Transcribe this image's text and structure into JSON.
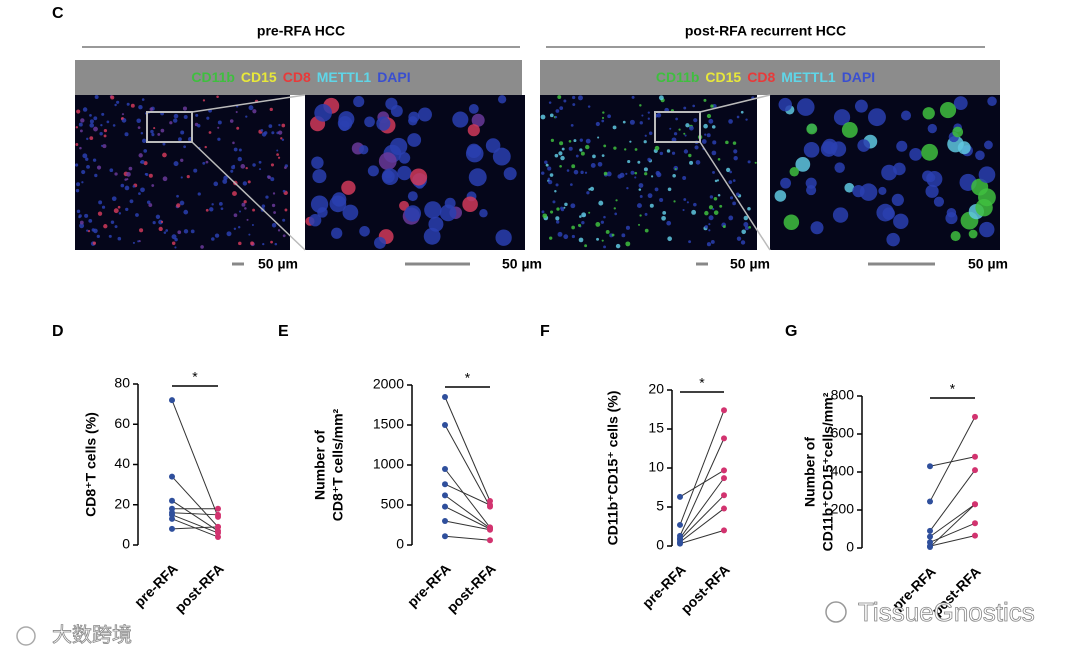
{
  "panel_c": {
    "letter": "C",
    "groups": [
      {
        "title": "pre-RFA HCC",
        "markers": [
          {
            "text": "CD11b",
            "color": "#3fbf3f"
          },
          {
            "text": "CD15",
            "color": "#e8e83a"
          },
          {
            "text": "CD8",
            "color": "#e83a3a"
          },
          {
            "text": "METTL1",
            "color": "#5fd6e8"
          },
          {
            "text": "DAPI",
            "color": "#3a4fd0"
          }
        ],
        "scale_bars": [
          "50 µm",
          "50 µm"
        ]
      },
      {
        "title": "post-RFA recurrent HCC",
        "markers": [
          {
            "text": "CD11b",
            "color": "#3fbf3f"
          },
          {
            "text": "CD15",
            "color": "#e8e83a"
          },
          {
            "text": "CD8",
            "color": "#e83a3a"
          },
          {
            "text": "METTL1",
            "color": "#5fd6e8"
          },
          {
            "text": "DAPI",
            "color": "#3a4fd0"
          }
        ],
        "scale_bars": [
          "50 µm",
          "50 µm"
        ]
      }
    ]
  },
  "chart_data": [
    {
      "type": "paired",
      "panel": "D",
      "ylabel": [
        "CD8⁺T cells (%)"
      ],
      "categories": [
        "pre-RFA",
        "post-RFA"
      ],
      "marker_colors": [
        "#2f4f9c",
        "#d2336f"
      ],
      "significance": "*",
      "series": [
        {
          "values": [
            72,
            14
          ]
        },
        {
          "values": [
            34,
            9
          ]
        },
        {
          "values": [
            22,
            7
          ]
        },
        {
          "values": [
            18,
            18
          ]
        },
        {
          "values": [
            16,
            15
          ]
        },
        {
          "values": [
            15,
            6
          ]
        },
        {
          "values": [
            13,
            4
          ]
        },
        {
          "values": [
            8,
            9
          ]
        }
      ],
      "ylim": [
        0,
        80
      ],
      "yticks": [
        0,
        20,
        40,
        60,
        80
      ]
    },
    {
      "type": "paired",
      "panel": "E",
      "ylabel": [
        "Number of",
        "CD8⁺T cells/mm²"
      ],
      "categories": [
        "pre-RFA",
        "post-RFA"
      ],
      "marker_colors": [
        "#2f4f9c",
        "#d2336f"
      ],
      "significance": "*",
      "series": [
        {
          "values": [
            1850,
            550
          ]
        },
        {
          "values": [
            1500,
            480
          ]
        },
        {
          "values": [
            950,
            220
          ]
        },
        {
          "values": [
            760,
            500
          ]
        },
        {
          "values": [
            620,
            210
          ]
        },
        {
          "values": [
            480,
            200
          ]
        },
        {
          "values": [
            300,
            190
          ]
        },
        {
          "values": [
            110,
            60
          ]
        }
      ],
      "ylim": [
        0,
        2000
      ],
      "yticks": [
        0,
        500,
        1000,
        1500,
        2000
      ]
    },
    {
      "type": "paired",
      "panel": "F",
      "ylabel": [
        "CD11b⁺CD15⁺ cells (%)"
      ],
      "categories": [
        "pre-RFA",
        "post-RFA"
      ],
      "marker_colors": [
        "#2f4f9c",
        "#d2336f"
      ],
      "significance": "*",
      "series": [
        {
          "values": [
            6.3,
            9.7
          ]
        },
        {
          "values": [
            2.7,
            17.4
          ]
        },
        {
          "values": [
            1.3,
            13.8
          ]
        },
        {
          "values": [
            1.0,
            8.7
          ]
        },
        {
          "values": [
            0.8,
            6.5
          ]
        },
        {
          "values": [
            0.5,
            4.8
          ]
        },
        {
          "values": [
            0.3,
            2.0
          ]
        }
      ],
      "ylim": [
        0,
        20
      ],
      "yticks": [
        0,
        5,
        10,
        15,
        20
      ]
    },
    {
      "type": "paired",
      "panel": "G",
      "ylabel": [
        "Number of",
        "CD11b⁺CD15⁺cells/mm²"
      ],
      "categories": [
        "pre-RFA",
        "post-RFA"
      ],
      "marker_colors": [
        "#2f4f9c",
        "#d2336f"
      ],
      "significance": "*",
      "series": [
        {
          "values": [
            430,
            480
          ]
        },
        {
          "values": [
            245,
            690
          ]
        },
        {
          "values": [
            90,
            410
          ]
        },
        {
          "values": [
            60,
            230
          ]
        },
        {
          "values": [
            30,
            130
          ]
        },
        {
          "values": [
            10,
            65
          ]
        },
        {
          "values": [
            5,
            230
          ]
        }
      ],
      "ylim": [
        0,
        800
      ],
      "yticks": [
        0,
        200,
        400,
        600,
        800
      ]
    }
  ],
  "watermarks": [
    "TissueGnostics",
    "大数跨境"
  ]
}
